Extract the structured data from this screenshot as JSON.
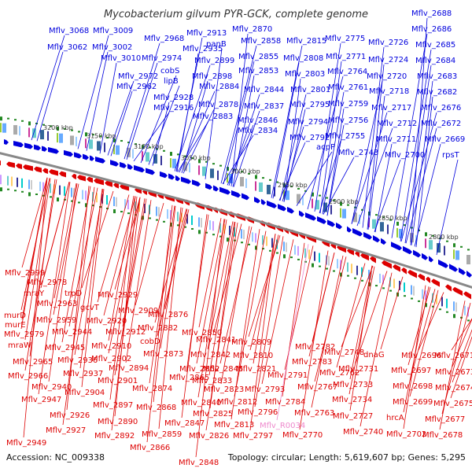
{
  "title": "Mycobacterium gilvum PYR-GCK, complete genome",
  "footer": {
    "accession": "Accession: NC_009338",
    "summary": "Topology: circular; Length: 5,619,607 bp; Genes: 5,295"
  },
  "colors": {
    "forward_strand": "#0000dd",
    "reverse_strand": "#dd0000",
    "rna_label": "#ee88cc",
    "backbone": "#888888",
    "tick_marker": "#228822"
  },
  "scale_ticks": [
    "3200 kbp",
    "3150 kbp",
    "3100 kbp",
    "3050 kbp",
    "3000 kbp",
    "2950 kbp",
    "2900 kbp",
    "2850 kbp",
    "2800 kbp"
  ],
  "top_labels": [
    "Mflv_3068",
    "Mflv_3009",
    "Mflv_3062",
    "Mflv_3002",
    "Mflv_3010",
    "Mflv_2968",
    "Mflv_2974",
    "Mflv_2913",
    "Mflv_2935",
    "Mflv_2870",
    "Mflv_2858",
    "Mflv_2815",
    "Mflv_2775",
    "Mflv_2726",
    "Mflv_2688",
    "Mflv_2686",
    "Mflv_2685",
    "Mflv_2684",
    "Mflv_2683",
    "Mflv_2682",
    "Mflv_2676",
    "Mflv_2672",
    "Mflv_2669",
    "rpsT",
    "panB",
    "Mflv_2899",
    "Mflv_2855",
    "Mflv_2808",
    "Mflv_2771",
    "Mflv_2724",
    "cobS",
    "lipB",
    "Mflv_2898",
    "Mflv_2853",
    "Mflv_2803",
    "Mflv_2764",
    "Mflv_2720",
    "Mflv_2972",
    "Mflv_2962",
    "Mflv_2928",
    "Mflv_2884",
    "Mflv_2844",
    "Mflv_2801",
    "Mflv_2761",
    "Mflv_2718",
    "Mflv_2916",
    "Mflv_2878",
    "Mflv_2837",
    "Mflv_2795",
    "Mflv_2759",
    "Mflv_2717",
    "Mflv_2883",
    "Mflv_2846",
    "Mflv_2794",
    "Mflv_2756",
    "Mflv_2712",
    "Mflv_2834",
    "Mflv_2792",
    "Mflv_2755",
    "Mflv_2711",
    "acpP",
    "Mflv_2743",
    "Mflv_2700"
  ],
  "bottom_labels": [
    "Mflv_2999",
    "Mflv_2978",
    "mraY",
    "trpD",
    "Mflv_2963",
    "Mflv_2929",
    "murD",
    "gcvT",
    "murE",
    "Mflv_2959",
    "Mflv_2909",
    "Mflv_2920",
    "Mflv_2876",
    "Mflv_2979",
    "Mflv_2944",
    "Mflv_2882",
    "Mflv_2912",
    "mraW",
    "Mflv_2945",
    "cobD",
    "Mflv_2850",
    "Mflv_2910",
    "Mflv_2841",
    "Mflv_2809",
    "Mflv_2782",
    "Mflv_2965",
    "Mflv_2936",
    "Mflv_2902",
    "Mflv_2873",
    "Mflv_2842",
    "Mflv_2810",
    "Mflv_2748",
    "dnaG",
    "Mflv_2696",
    "Mflv_2671",
    "Mflv_2966",
    "Mflv_2937",
    "Mflv_2894",
    "Mflv_2852",
    "Mflv_2845",
    "Mflv_2821",
    "Mflv_2783",
    "Mflv_2762",
    "Mflv_2731",
    "Mflv_2697",
    "Mflv_2673",
    "Mflv_2940",
    "Mflv_2901",
    "Mflv_2865",
    "Mflv_2833",
    "Mflv_2791",
    "Mflv_2767",
    "Mflv_2733",
    "Mflv_2698",
    "Mflv_2674",
    "Mflv_2947",
    "Mflv_2904",
    "Mflv_2874",
    "Mflv_2823",
    "Mflv_2793",
    "Mflv_2926",
    "Mflv_2897",
    "Mflv_2840",
    "Mflv_2812",
    "Mflv_2784",
    "Mflv_2734",
    "Mflv_2699",
    "Mflv_2675",
    "Mflv_2868",
    "Mflv_2825",
    "Mflv_2796",
    "Mflv_2763",
    "Mflv_2890",
    "Mflv_2847",
    "Mflv_2813",
    "Mflv_R0034",
    "Mflv_2727",
    "hrcA",
    "Mflv_2677",
    "Mflv_2927",
    "Mflv_2859",
    "Mflv_2797",
    "Mflv_2770",
    "Mflv_2740",
    "Mflv_2702",
    "Mflv_2678",
    "Mflv_2892",
    "Mflv_2826",
    "Mflv_2949",
    "Mflv_2866",
    "Mflv_2848"
  ],
  "rna_genes": [
    "Mflv_R0034"
  ]
}
